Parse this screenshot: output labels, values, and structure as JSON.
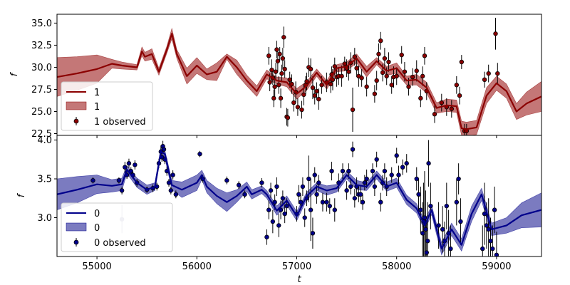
{
  "chart_data": [
    {
      "type": "line",
      "ylabel": "f",
      "xlim": [
        54600,
        59450
      ],
      "ylim": [
        22.3,
        36.0
      ],
      "yticks": [
        "22.5",
        "25.0",
        "27.5",
        "30.0",
        "32.5",
        "35.0"
      ],
      "ytick_values": [
        22.5,
        25.0,
        27.5,
        30.0,
        32.5,
        35.0
      ],
      "colors": {
        "line": "#8b0000",
        "band": "#b55555",
        "marker": "#8b0000"
      },
      "legend_position": "lower-left",
      "legend": {
        "line": "1",
        "band": "1",
        "observed": "1 observed"
      },
      "series": [
        {
          "name": "1",
          "x": [
            54600,
            54800,
            55000,
            55150,
            55250,
            55400,
            55450,
            55480,
            55550,
            55620,
            55700,
            55750,
            55800,
            55900,
            56000,
            56100,
            56200,
            56300,
            56400,
            56500,
            56600,
            56700,
            56800,
            56900,
            57000,
            57100,
            57200,
            57300,
            57400,
            57500,
            57600,
            57700,
            57800,
            57900,
            58000,
            58100,
            58200,
            58300,
            58400,
            58500,
            58600,
            58650,
            58700,
            58800,
            58900,
            59000,
            59100,
            59200,
            59300,
            59450
          ],
          "y": [
            28.9,
            29.3,
            29.8,
            30.4,
            30.2,
            30.0,
            31.8,
            31.2,
            31.5,
            29.5,
            32.0,
            33.8,
            31.5,
            29.0,
            30.2,
            29.2,
            29.5,
            31.2,
            30.0,
            28.5,
            27.3,
            29.2,
            28.5,
            28.3,
            27.0,
            27.9,
            29.4,
            28.0,
            29.9,
            30.1,
            31.0,
            29.5,
            30.7,
            29.6,
            29.9,
            28.5,
            28.6,
            27.7,
            25.4,
            25.7,
            25.6,
            23.1,
            23.0,
            23.2,
            26.8,
            28.2,
            27.3,
            25.0,
            25.9,
            26.7
          ],
          "band": [
            2.2,
            1.9,
            1.6,
            0.5,
            0.4,
            0.3,
            0.5,
            0.5,
            0.6,
            0.4,
            0.4,
            0.6,
            0.5,
            0.9,
            0.9,
            0.6,
            1.0,
            0.3,
            0.8,
            0.6,
            0.6,
            0.5,
            0.4,
            0.5,
            0.6,
            0.5,
            0.4,
            0.5,
            0.4,
            0.5,
            0.5,
            0.6,
            0.4,
            0.5,
            0.6,
            0.5,
            0.6,
            0.6,
            0.6,
            0.7,
            0.7,
            0.8,
            0.8,
            0.8,
            0.9,
            0.8,
            0.8,
            0.9,
            1.3,
            1.7
          ]
        }
      ],
      "observed": {
        "name": "1 observed",
        "x": [
          56720,
          56730,
          56750,
          56760,
          56770,
          56780,
          56790,
          56800,
          56810,
          56820,
          56830,
          56840,
          56850,
          56860,
          56870,
          56880,
          56900,
          56910,
          56930,
          56950,
          56970,
          56990,
          57010,
          57050,
          57070,
          57090,
          57100,
          57120,
          57140,
          57160,
          57180,
          57200,
          57220,
          57250,
          57300,
          57340,
          57350,
          57360,
          57380,
          57400,
          57420,
          57450,
          57480,
          57500,
          57520,
          57540,
          57560,
          57580,
          57600,
          57620,
          57650,
          57700,
          57780,
          57800,
          57820,
          57840,
          57860,
          57880,
          57900,
          57920,
          57950,
          57970,
          58000,
          58050,
          58080,
          58120,
          58160,
          58200,
          58240,
          58260,
          58280,
          58300,
          58380,
          58450,
          58500,
          58550,
          58600,
          58630,
          58650,
          58680,
          58700,
          58880,
          58920,
          58990,
          59010
        ],
        "y": [
          31.3,
          28.3,
          29.7,
          28.8,
          26.5,
          27.8,
          29.5,
          32.0,
          30.7,
          28.0,
          31.5,
          26.5,
          29.3,
          31.0,
          33.4,
          29.8,
          24.4,
          24.3,
          28.6,
          28.1,
          26.0,
          27.2,
          25.5,
          25.2,
          26.9,
          28.0,
          28.4,
          30.0,
          29.8,
          27.7,
          26.8,
          27.3,
          26.4,
          28.0,
          28.3,
          28.1,
          29.2,
          28.6,
          30.1,
          28.9,
          29.0,
          29.0,
          30.4,
          29.9,
          29.5,
          30.5,
          25.2,
          31.2,
          29.9,
          29.0,
          28.8,
          27.8,
          27.0,
          28.5,
          31.5,
          33.0,
          29.4,
          31.0,
          29.0,
          30.6,
          28.0,
          28.9,
          29.0,
          31.4,
          29.5,
          27.8,
          28.9,
          29.6,
          26.5,
          29.0,
          31.3,
          27.3,
          24.7,
          26.0,
          25.5,
          25.3,
          28.0,
          26.8,
          30.6,
          22.8,
          22.8,
          28.6,
          29.3,
          33.8,
          29.3
        ],
        "err": [
          1.0,
          1.0,
          1.2,
          0.8,
          1.0,
          1.2,
          1.0,
          1.0,
          1.2,
          1.0,
          0.8,
          1.1,
          1.0,
          1.2,
          1.2,
          1.0,
          1.0,
          1.0,
          0.9,
          1.1,
          1.0,
          1.2,
          1.0,
          1.0,
          1.2,
          1.0,
          1.0,
          1.1,
          1.2,
          1.3,
          1.0,
          1.0,
          1.2,
          1.0,
          1.1,
          1.0,
          0.9,
          1.2,
          1.0,
          1.1,
          1.0,
          1.2,
          0.8,
          1.0,
          1.0,
          1.2,
          2.5,
          1.0,
          1.0,
          1.2,
          1.0,
          1.1,
          1.0,
          1.1,
          1.2,
          1.0,
          1.0,
          1.2,
          1.0,
          1.1,
          1.0,
          1.2,
          1.0,
          1.0,
          1.1,
          1.0,
          1.0,
          1.2,
          1.0,
          1.1,
          1.0,
          1.0,
          1.0,
          1.0,
          1.0,
          1.0,
          1.0,
          1.0,
          0.8,
          0.8,
          0.8,
          0.9,
          1.0,
          1.8,
          1.2
        ]
      }
    },
    {
      "type": "line",
      "ylabel": "f",
      "xlabel": "t",
      "xlim": [
        54600,
        59450
      ],
      "ylim": [
        2.5,
        4.06
      ],
      "yticks": [
        "3.0",
        "3.5",
        "4.0"
      ],
      "ytick_values": [
        3.0,
        3.5,
        4.0
      ],
      "xticks": [
        "55000",
        "56000",
        "57000",
        "58000",
        "59000"
      ],
      "xtick_values": [
        55000,
        56000,
        57000,
        58000,
        59000
      ],
      "colors": {
        "line": "#00008b",
        "band": "#5a5ab0",
        "marker": "#00008b",
        "outlier": "#9a9ab8"
      },
      "legend_position": "lower-left",
      "legend": {
        "line": "0",
        "band": "0",
        "observed": "0 observed"
      },
      "series": [
        {
          "name": "0",
          "x": [
            54600,
            54800,
            55000,
            55150,
            55250,
            55300,
            55400,
            55500,
            55580,
            55640,
            55680,
            55750,
            55850,
            56000,
            56050,
            56100,
            56200,
            56300,
            56400,
            56500,
            56550,
            56650,
            56700,
            56800,
            56900,
            57000,
            57100,
            57200,
            57300,
            57400,
            57500,
            57600,
            57700,
            57800,
            57900,
            58000,
            58100,
            58200,
            58280,
            58350,
            58450,
            58550,
            58650,
            58750,
            58850,
            58950,
            59100,
            59250,
            59450
          ],
          "y": [
            3.3,
            3.36,
            3.43,
            3.41,
            3.43,
            3.62,
            3.45,
            3.36,
            3.4,
            3.85,
            3.82,
            3.42,
            3.36,
            3.45,
            3.55,
            3.4,
            3.28,
            3.2,
            3.28,
            3.4,
            3.3,
            3.36,
            3.3,
            3.09,
            3.22,
            3.02,
            3.28,
            3.4,
            3.35,
            3.38,
            3.55,
            3.42,
            3.4,
            3.55,
            3.4,
            3.45,
            3.23,
            3.12,
            2.9,
            3.1,
            2.6,
            2.85,
            2.65,
            3.05,
            3.3,
            2.85,
            2.9,
            3.03,
            3.1
          ],
          "band": [
            0.2,
            0.17,
            0.12,
            0.08,
            0.08,
            0.05,
            0.06,
            0.06,
            0.05,
            0.05,
            0.05,
            0.06,
            0.1,
            0.1,
            0.06,
            0.08,
            0.1,
            0.12,
            0.08,
            0.06,
            0.06,
            0.05,
            0.05,
            0.06,
            0.06,
            0.06,
            0.05,
            0.05,
            0.06,
            0.05,
            0.05,
            0.06,
            0.05,
            0.05,
            0.06,
            0.06,
            0.06,
            0.06,
            0.06,
            0.06,
            0.08,
            0.08,
            0.08,
            0.1,
            0.08,
            0.08,
            0.1,
            0.16,
            0.22
          ]
        }
      ],
      "observed": {
        "name": "0 observed",
        "x": [
          54960,
          55220,
          55250,
          55280,
          55300,
          55320,
          55340,
          55360,
          55380,
          55400,
          55500,
          55560,
          55600,
          55620,
          55640,
          55650,
          55660,
          55670,
          55680,
          55700,
          55720,
          55740,
          55760,
          55790,
          56030,
          56060,
          56300,
          56420,
          56480,
          56650,
          56700,
          56720,
          56740,
          56760,
          56780,
          56800,
          56820,
          56840,
          56860,
          56880,
          56900,
          57000,
          57020,
          57040,
          57060,
          57080,
          57100,
          57120,
          57140,
          57160,
          57180,
          57200,
          57220,
          57260,
          57300,
          57330,
          57350,
          57380,
          57420,
          57460,
          57500,
          57520,
          57540,
          57560,
          57580,
          57600,
          57620,
          57640,
          57660,
          57680,
          57700,
          57760,
          57780,
          57800,
          57840,
          57860,
          57880,
          57900,
          57950,
          58000,
          58020,
          58060,
          58100,
          58200,
          58220,
          58240,
          58260,
          58270,
          58280,
          58290,
          58300,
          58310,
          58320,
          58340,
          58420,
          58460,
          58480,
          58500,
          58520,
          58540,
          58600,
          58620,
          58640,
          58860,
          58880,
          58900,
          58920,
          58940,
          58960,
          58980,
          59000
        ],
        "y": [
          3.48,
          3.48,
          3.35,
          3.65,
          3.55,
          3.7,
          3.6,
          3.55,
          3.68,
          3.45,
          3.36,
          3.38,
          3.4,
          3.7,
          3.85,
          3.78,
          3.92,
          3.88,
          3.75,
          3.6,
          3.45,
          3.35,
          3.55,
          3.3,
          3.82,
          3.5,
          3.48,
          3.42,
          3.3,
          3.45,
          2.75,
          3.1,
          3.35,
          2.95,
          3.2,
          3.4,
          2.9,
          3.1,
          3.25,
          3.05,
          3.15,
          3.05,
          3.3,
          3.2,
          3.4,
          3.0,
          3.25,
          3.5,
          3.1,
          2.8,
          3.55,
          3.3,
          3.45,
          3.2,
          3.2,
          3.15,
          3.6,
          3.1,
          3.45,
          3.6,
          3.35,
          3.6,
          3.4,
          3.88,
          3.25,
          3.4,
          3.3,
          3.3,
          3.2,
          3.45,
          3.5,
          3.6,
          3.4,
          3.75,
          3.2,
          3.45,
          3.6,
          3.4,
          3.55,
          3.8,
          3.55,
          3.65,
          3.7,
          3.5,
          3.3,
          3.1,
          2.8,
          2.95,
          3.0,
          2.85,
          2.55,
          2.7,
          3.7,
          3.15,
          2.9,
          2.85,
          2.7,
          3.15,
          2.8,
          2.6,
          3.2,
          3.5,
          2.95,
          2.6,
          3.05,
          2.9,
          2.85,
          2.7,
          2.6,
          3.1,
          2.52
        ],
        "err": [
          0.04,
          0.04,
          0.05,
          0.07,
          0.05,
          0.06,
          0.05,
          0.05,
          0.06,
          0.05,
          0.04,
          0.05,
          0.05,
          0.06,
          0.08,
          0.06,
          0.07,
          0.06,
          0.06,
          0.06,
          0.05,
          0.05,
          0.06,
          0.05,
          0.04,
          0.05,
          0.05,
          0.05,
          0.05,
          0.06,
          0.1,
          0.12,
          0.1,
          0.15,
          0.1,
          0.12,
          0.15,
          0.12,
          0.1,
          0.12,
          0.1,
          0.1,
          0.12,
          0.1,
          0.12,
          0.12,
          0.1,
          0.3,
          0.4,
          0.2,
          0.1,
          0.12,
          0.1,
          0.12,
          0.12,
          0.1,
          0.12,
          0.15,
          0.12,
          0.1,
          0.12,
          0.1,
          0.1,
          0.1,
          0.12,
          0.12,
          0.1,
          0.12,
          0.1,
          0.1,
          0.12,
          0.1,
          0.12,
          0.1,
          0.12,
          0.1,
          0.1,
          0.12,
          0.1,
          0.1,
          0.12,
          0.1,
          0.12,
          0.15,
          0.2,
          0.3,
          0.4,
          0.5,
          0.6,
          0.5,
          0.4,
          0.5,
          0.3,
          0.3,
          0.3,
          0.3,
          0.25,
          0.3,
          0.3,
          0.3,
          0.3,
          0.2,
          0.3,
          0.3,
          0.4,
          0.3,
          0.4,
          0.3,
          0.3,
          0.3,
          0.3
        ],
        "outlier": {
          "x": 55250,
          "y": 2.98,
          "err": 0.18
        }
      }
    }
  ],
  "axis_labels": {
    "top_ylabel": "f",
    "bottom_ylabel": "f",
    "xlabel": "t"
  }
}
